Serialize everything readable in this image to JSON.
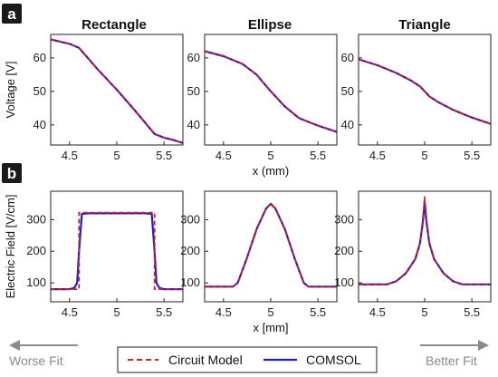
{
  "panel_labels": [
    "a",
    "b"
  ],
  "column_titles": [
    "Rectangle",
    "Ellipse",
    "Triangle"
  ],
  "footer": {
    "left": "Worse Fit",
    "right": "Better Fit"
  },
  "legend": {
    "items": [
      "Circuit Model",
      "COMSOL"
    ]
  },
  "colors": {
    "circuit": "#cc2222",
    "comsol": "#1f1fcc",
    "arrow": "#8a8a8a"
  },
  "chart_data": [
    {
      "type": "line",
      "panel": "a",
      "column": "Rectangle",
      "title": "Rectangle",
      "xlabel": "",
      "ylabel": "Voltage [V]",
      "xlim": [
        4.3,
        5.7
      ],
      "ylim": [
        34,
        67
      ],
      "xticks": [
        "4.5",
        "5",
        "5.5"
      ],
      "yticks": [
        "40",
        "50",
        "60"
      ],
      "series": [
        {
          "name": "Circuit Model",
          "x": [
            4.3,
            4.5,
            4.6,
            4.8,
            5.0,
            5.2,
            5.4,
            5.5,
            5.6,
            5.7
          ],
          "y": [
            65.5,
            64.2,
            63.0,
            56.5,
            50.5,
            44.0,
            37.3,
            36.2,
            35.5,
            34.6
          ]
        },
        {
          "name": "COMSOL",
          "x": [
            4.3,
            4.5,
            4.6,
            4.8,
            5.0,
            5.2,
            5.4,
            5.5,
            5.6,
            5.7
          ],
          "y": [
            65.5,
            64.2,
            63.0,
            56.5,
            50.5,
            44.0,
            37.3,
            36.2,
            35.5,
            34.6
          ]
        }
      ]
    },
    {
      "type": "line",
      "panel": "a",
      "column": "Ellipse",
      "title": "Ellipse",
      "xlabel": "x (mm)",
      "ylabel": "",
      "xlim": [
        4.3,
        5.7
      ],
      "ylim": [
        34,
        67
      ],
      "xticks": [
        "4.5",
        "5",
        "5.5"
      ],
      "yticks": [
        "40",
        "50",
        "60"
      ],
      "series": [
        {
          "name": "Circuit Model",
          "x": [
            4.3,
            4.5,
            4.7,
            4.85,
            5.0,
            5.15,
            5.3,
            5.5,
            5.7
          ],
          "y": [
            62.0,
            60.5,
            58.2,
            55.0,
            50.0,
            45.5,
            42.0,
            39.8,
            37.9
          ]
        },
        {
          "name": "COMSOL",
          "x": [
            4.3,
            4.5,
            4.7,
            4.85,
            5.0,
            5.15,
            5.3,
            5.5,
            5.7
          ],
          "y": [
            62.0,
            60.5,
            58.2,
            55.0,
            50.0,
            45.5,
            42.0,
            39.8,
            37.9
          ]
        }
      ]
    },
    {
      "type": "line",
      "panel": "a",
      "column": "Triangle",
      "title": "Triangle",
      "xlabel": "",
      "ylabel": "",
      "xlim": [
        4.3,
        5.7
      ],
      "ylim": [
        34,
        67
      ],
      "xticks": [
        "4.5",
        "5",
        "5.5"
      ],
      "yticks": [
        "40",
        "50",
        "60"
      ],
      "series": [
        {
          "name": "Circuit Model",
          "x": [
            4.3,
            4.5,
            4.7,
            4.85,
            4.95,
            5.0,
            5.05,
            5.15,
            5.3,
            5.5,
            5.7
          ],
          "y": [
            59.6,
            57.8,
            55.5,
            53.3,
            51.5,
            50.0,
            48.5,
            46.7,
            44.5,
            42.2,
            40.3
          ]
        },
        {
          "name": "COMSOL",
          "x": [
            4.3,
            4.5,
            4.7,
            4.85,
            4.95,
            5.0,
            5.05,
            5.15,
            5.3,
            5.5,
            5.7
          ],
          "y": [
            59.6,
            57.8,
            55.5,
            53.3,
            51.5,
            50.0,
            48.5,
            46.7,
            44.5,
            42.2,
            40.3
          ]
        }
      ]
    },
    {
      "type": "line",
      "panel": "b",
      "column": "Rectangle",
      "title": "",
      "xlabel": "",
      "ylabel": "Electric Field [V/cm]",
      "xlim": [
        4.3,
        5.7
      ],
      "ylim": [
        40,
        390
      ],
      "xticks": [
        "4.5",
        "5",
        "5.5"
      ],
      "yticks": [
        "100",
        "200",
        "300"
      ],
      "series": [
        {
          "name": "Circuit Model",
          "x": [
            4.3,
            4.55,
            4.6,
            4.6,
            4.7,
            5.0,
            5.3,
            5.4,
            5.4,
            5.45,
            5.7
          ],
          "y": [
            80,
            80,
            80,
            322,
            322,
            322,
            322,
            322,
            80,
            80,
            80
          ]
        },
        {
          "name": "COMSOL",
          "x": [
            4.3,
            4.5,
            4.55,
            4.58,
            4.6,
            4.63,
            4.7,
            5.0,
            5.3,
            5.37,
            5.4,
            5.42,
            5.45,
            5.5,
            5.7
          ],
          "y": [
            80,
            80,
            84,
            100,
            200,
            318,
            320,
            320,
            320,
            318,
            200,
            100,
            84,
            80,
            80
          ]
        }
      ]
    },
    {
      "type": "line",
      "panel": "b",
      "column": "Ellipse",
      "title": "",
      "xlabel": "x [mm]",
      "ylabel": "",
      "xlim": [
        4.3,
        5.7
      ],
      "ylim": [
        40,
        390
      ],
      "xticks": [
        "4.5",
        "5",
        "5.5"
      ],
      "yticks": [
        "100",
        "200",
        "300"
      ],
      "series": [
        {
          "name": "Circuit Model",
          "x": [
            4.3,
            4.6,
            4.65,
            4.75,
            4.85,
            4.95,
            5.0,
            5.05,
            5.15,
            5.25,
            5.35,
            5.4,
            5.7
          ],
          "y": [
            88,
            88,
            100,
            180,
            270,
            335,
            350,
            335,
            270,
            180,
            100,
            88,
            88
          ]
        },
        {
          "name": "COMSOL",
          "x": [
            4.3,
            4.6,
            4.65,
            4.75,
            4.85,
            4.95,
            5.0,
            5.05,
            5.15,
            5.25,
            5.35,
            5.4,
            5.7
          ],
          "y": [
            88,
            88,
            100,
            180,
            270,
            335,
            350,
            335,
            270,
            180,
            100,
            88,
            88
          ]
        }
      ]
    },
    {
      "type": "line",
      "panel": "b",
      "column": "Triangle",
      "title": "",
      "xlabel": "",
      "ylabel": "",
      "xlim": [
        4.3,
        5.7
      ],
      "ylim": [
        40,
        390
      ],
      "xticks": [
        "4.5",
        "5",
        "5.5"
      ],
      "yticks": [
        "100",
        "200",
        "300"
      ],
      "series": [
        {
          "name": "Circuit Model",
          "x": [
            4.3,
            4.6,
            4.7,
            4.8,
            4.9,
            4.95,
            4.98,
            5.0,
            5.02,
            5.05,
            5.1,
            5.2,
            5.3,
            5.4,
            5.7
          ],
          "y": [
            95,
            95,
            105,
            130,
            175,
            225,
            300,
            372,
            300,
            225,
            175,
            130,
            105,
            95,
            95
          ]
        },
        {
          "name": "COMSOL",
          "x": [
            4.3,
            4.6,
            4.7,
            4.8,
            4.9,
            4.95,
            4.98,
            5.0,
            5.02,
            5.05,
            5.1,
            5.2,
            5.3,
            5.4,
            5.7
          ],
          "y": [
            95,
            95,
            105,
            130,
            175,
            225,
            290,
            355,
            290,
            225,
            175,
            130,
            105,
            95,
            95
          ]
        }
      ]
    }
  ]
}
